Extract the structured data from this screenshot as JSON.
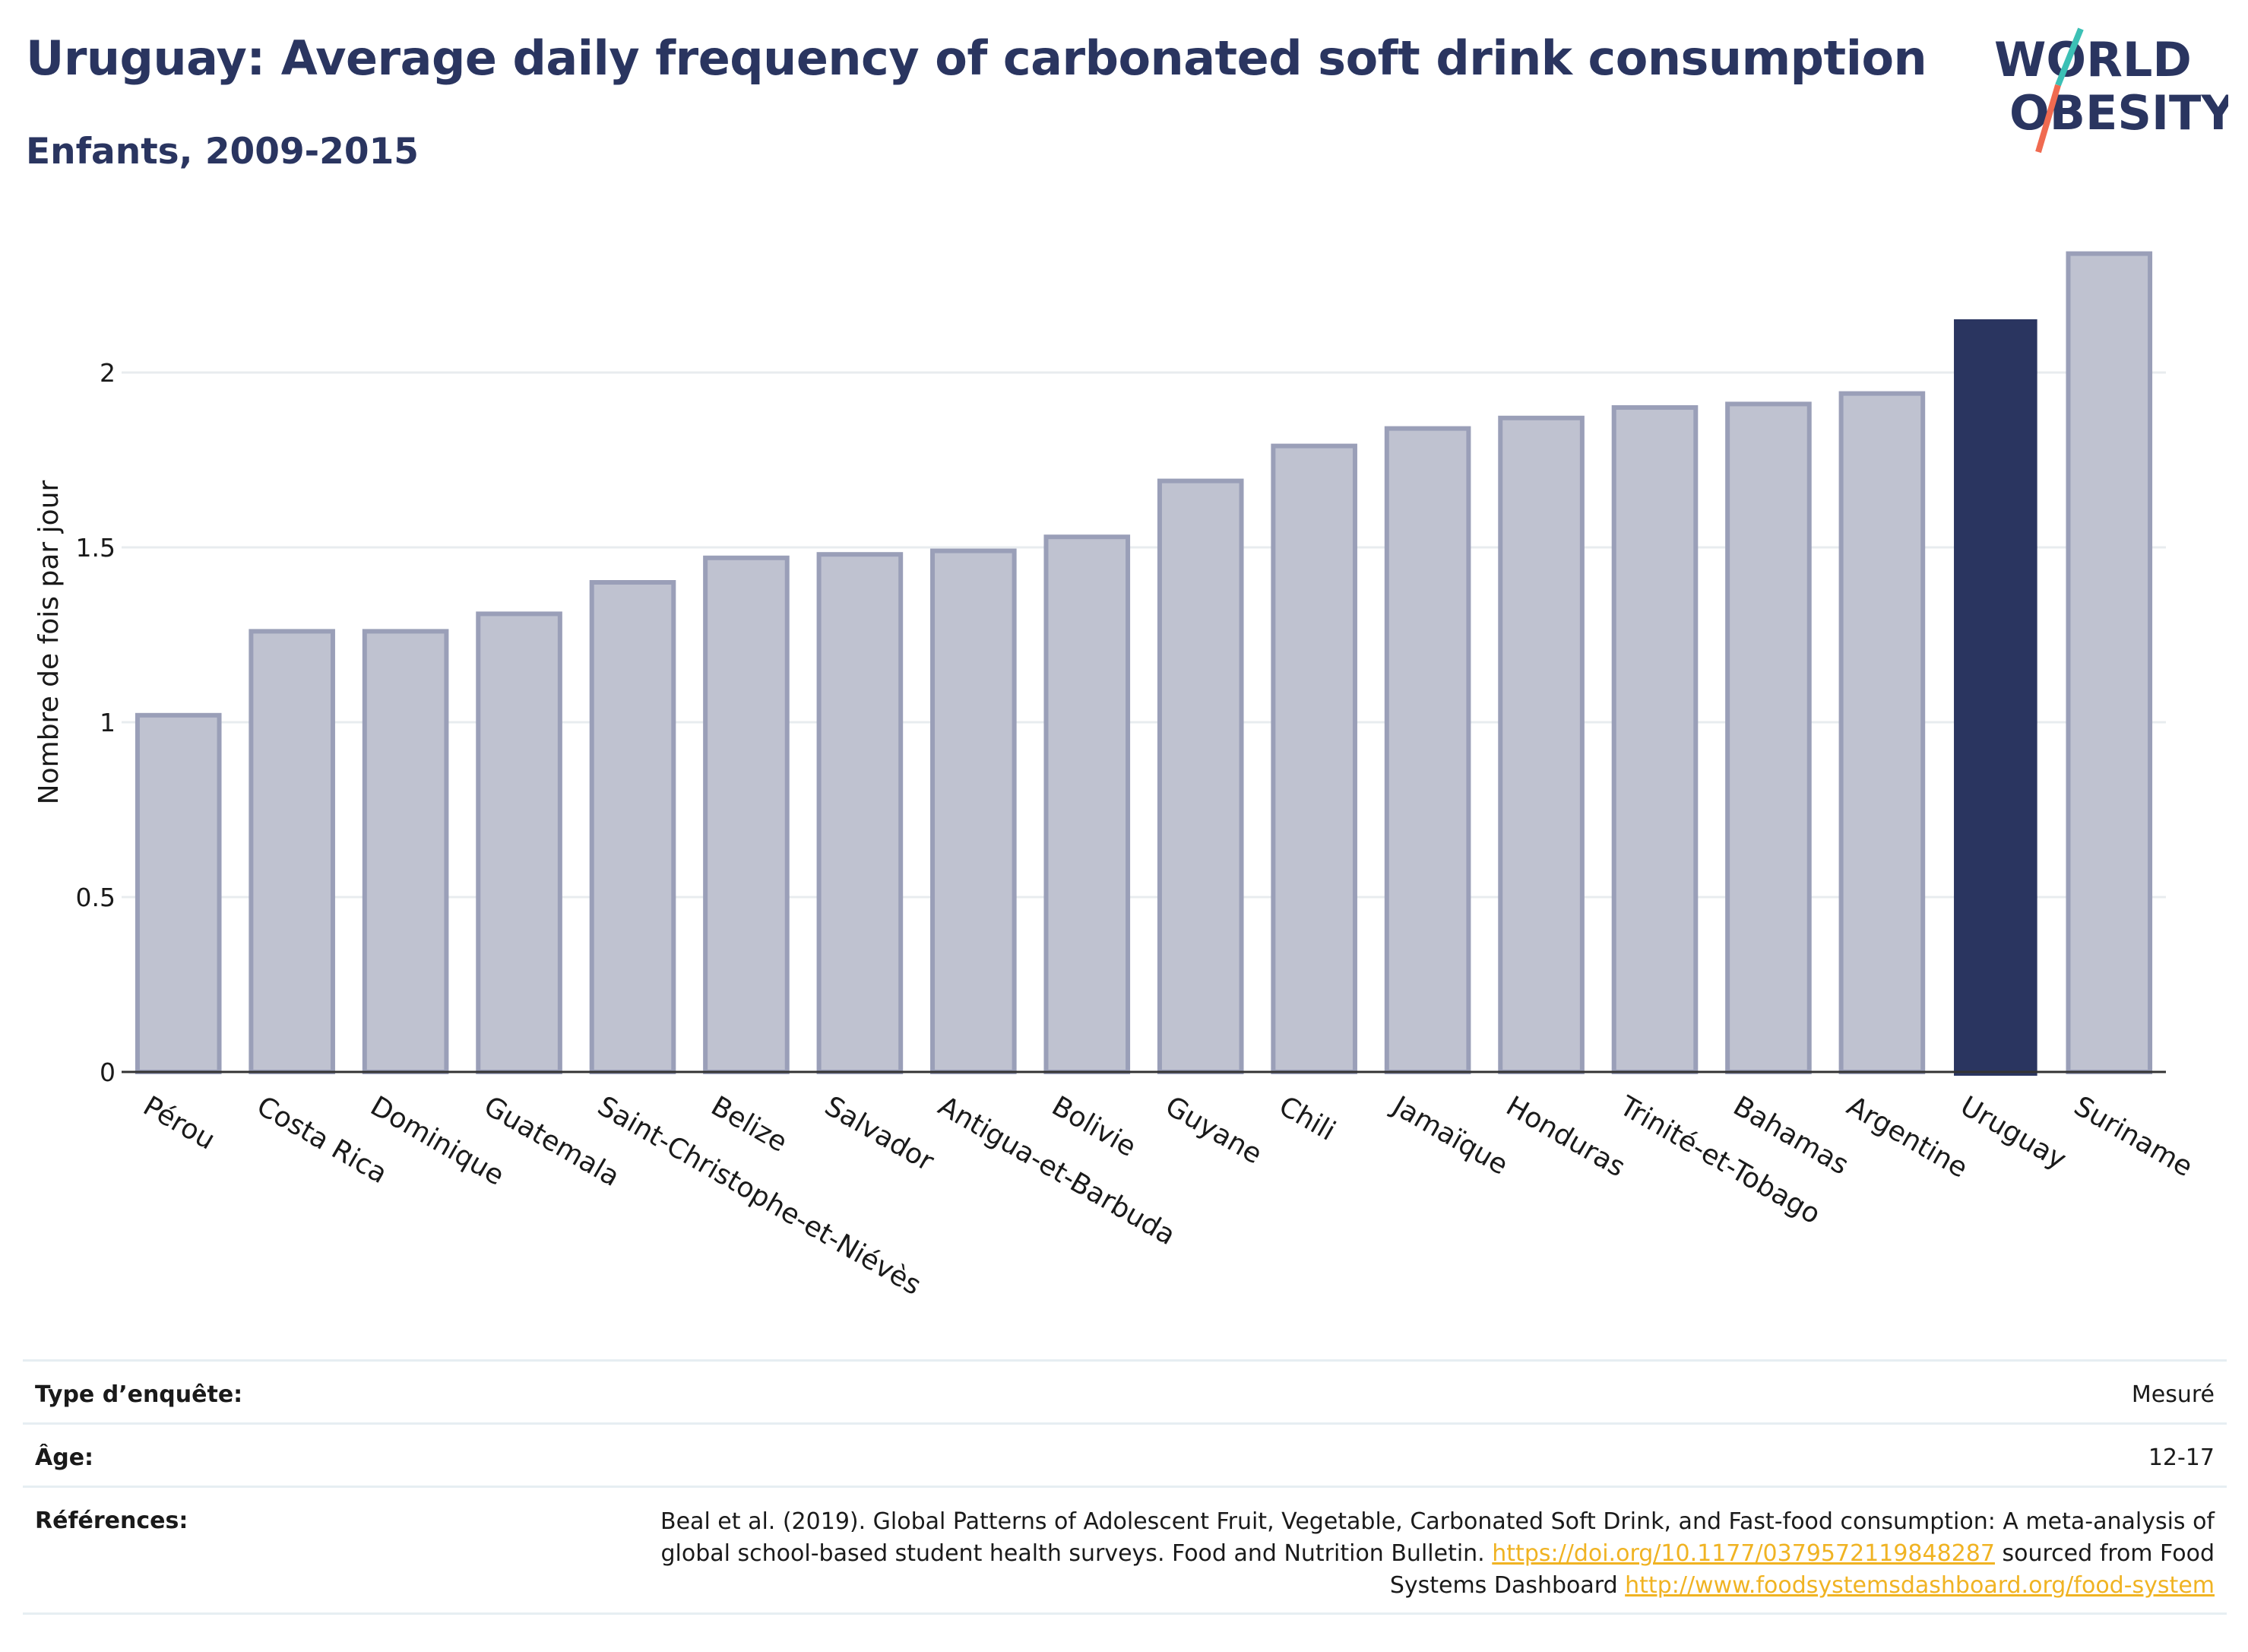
{
  "header": {
    "title": "Uruguay: Average daily frequency of carbonated soft drink consumption",
    "subtitle": "Enfants, 2009-2015"
  },
  "logo": {
    "line1": "WORLD",
    "line2": "OBESITY",
    "text_color": "#2a3560",
    "slash_colors": [
      "#3cc0b5",
      "#f06a50"
    ]
  },
  "chart_data": {
    "type": "bar",
    "title": "Uruguay: Average daily frequency of carbonated soft drink consumption",
    "subtitle": "Enfants, 2009-2015",
    "xlabel": "",
    "ylabel": "Nombre de fois par jour",
    "ylim": [
      0,
      2.4
    ],
    "yticks": [
      0,
      0.5,
      1,
      1.5,
      2
    ],
    "ytick_labels": [
      "0",
      "0.5",
      "1",
      "1.5",
      "2"
    ],
    "grid": true,
    "categories": [
      "Pérou",
      "Costa Rica",
      "Dominique",
      "Guatemala",
      "Saint-Christophe-et-Niévès",
      "Belize",
      "Salvador",
      "Antigua-et-Barbuda",
      "Bolivie",
      "Guyane",
      "Chili",
      "Jamaïque",
      "Honduras",
      "Trinité-et-Tobago",
      "Bahamas",
      "Argentine",
      "Uruguay",
      "Suriname"
    ],
    "values": [
      1.02,
      1.26,
      1.26,
      1.31,
      1.4,
      1.47,
      1.48,
      1.49,
      1.53,
      1.69,
      1.79,
      1.84,
      1.87,
      1.9,
      1.91,
      1.94,
      2.15,
      2.34
    ],
    "highlight": "Uruguay",
    "colors": {
      "bar": "#bfc2d0",
      "bar_border": "#9a9fb8",
      "highlight": "#2a3560",
      "grid": "#e8ecef",
      "axis": "#333333"
    }
  },
  "meta": {
    "survey_type_label": "Type d’enquête:",
    "survey_type_value": "Mesuré",
    "age_label": "Âge:",
    "age_value": "12-17",
    "references_label": "Références:",
    "references_text_1": "Beal et al. (2019). Global Patterns of Adolescent Fruit, Vegetable, Carbonated Soft Drink, and Fast-food consumption: A meta-analysis of global school-based student health surveys. Food and Nutrition Bulletin.",
    "references_link_1": "https://doi.org/10.1177/0379572119848287",
    "references_text_2": "sourced from Food Systems Dashboard",
    "references_link_2": "http://www.foodsystemsdashboard.org/food-system"
  }
}
